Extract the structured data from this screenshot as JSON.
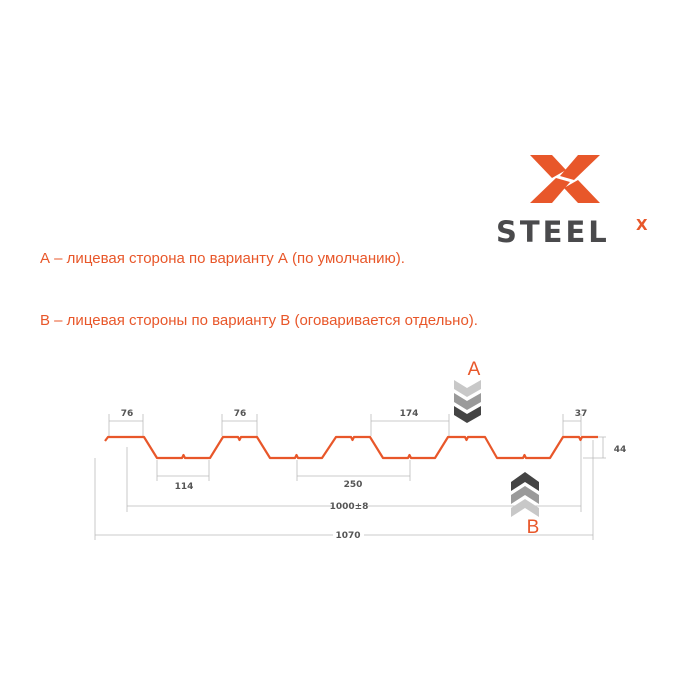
{
  "logo": {
    "text": "STEEL",
    "superscript": "X",
    "brand_color": "#e8572a",
    "text_color": "#4a4a4c"
  },
  "notes": [
    "А – лицевая сторона по варианту А (по умолчанию).",
    "В – лицевая стороны по варианту В (оговаривается отдельно)."
  ],
  "diagram": {
    "profile_color": "#e8572a",
    "side_a": "A",
    "side_b": "B",
    "dimensions": {
      "crest_left": "76",
      "crest_second": "76",
      "pitch_174": "174",
      "crest_edge": "37",
      "height": "44",
      "valley": "114",
      "pitch_250": "250",
      "useful_width": "1000±8",
      "total_width": "1070"
    }
  }
}
